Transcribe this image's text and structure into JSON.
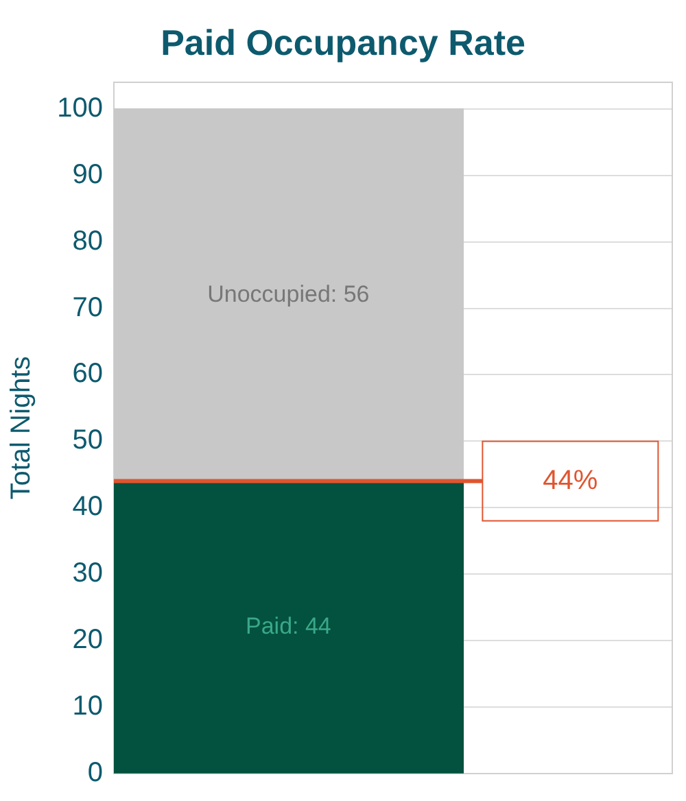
{
  "chart_data": {
    "type": "bar",
    "title": "Paid Occupancy Rate",
    "ylabel": "Total Nights",
    "categories": [
      null
    ],
    "stacked": true,
    "series": [
      {
        "color": "#03513f",
        "values": [
          44
        ],
        "value_labels": [
          "Paid: 44"
        ]
      },
      {
        "color": "#c8c8c8",
        "values": [
          56
        ],
        "value_labels": [
          "Unoccupied: 56"
        ]
      }
    ],
    "ylim": [
      0,
      104
    ],
    "yticks": [
      0,
      10,
      20,
      30,
      40,
      50,
      60,
      70,
      80,
      90,
      100
    ],
    "grid": "y",
    "legend": false,
    "ref_lines": [
      {
        "axis": "y",
        "value": 44,
        "label": "44%",
        "color": "#e0552f"
      }
    ]
  }
}
